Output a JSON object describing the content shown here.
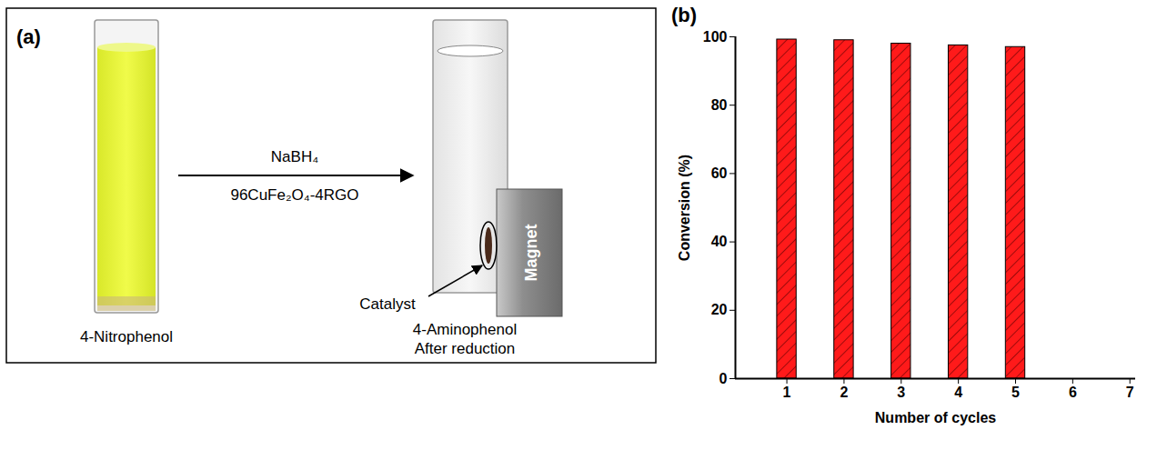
{
  "diagram": {
    "panel_label": "(a)",
    "reagent": "NaBH₄",
    "catalyst_name": "96CuFe₂O₄-4RGO",
    "left_label": "4-Nitrophenol",
    "right_label": [
      "4-Aminophenol",
      "After reduction"
    ],
    "catalyst_label": "Catalyst",
    "magnet_label": "Magnet"
  },
  "chart_data": {
    "type": "bar",
    "panel_label": "(b)",
    "x": [
      1,
      2,
      3,
      4,
      5
    ],
    "values": [
      99.2,
      99,
      98,
      97.5,
      97
    ],
    "color": "#ff1a1a",
    "xlim": [
      0.1,
      7.1
    ],
    "xticks": [
      1,
      2,
      3,
      4,
      5,
      6,
      7
    ],
    "ylim": [
      0,
      100
    ],
    "yticks": [
      0,
      20,
      40,
      60,
      80,
      100
    ],
    "x_label": "Number of cycles",
    "y_label": "Conversion (%)",
    "grid": false
  }
}
